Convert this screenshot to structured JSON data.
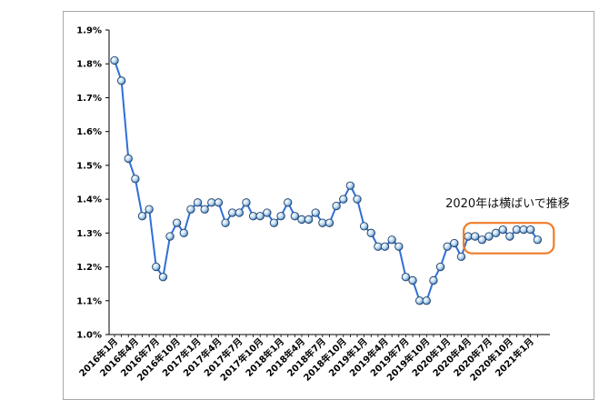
{
  "chart_data": {
    "type": "line",
    "title": "",
    "xlabel": "",
    "ylabel": "",
    "ylim": [
      1.0,
      1.9
    ],
    "y_ticks": [
      "1.0%",
      "1.1%",
      "1.2%",
      "1.3%",
      "1.4%",
      "1.5%",
      "1.6%",
      "1.7%",
      "1.8%",
      "1.9%"
    ],
    "x_tick_labels": [
      "2016年1月",
      "2016年4月",
      "2016年7月",
      "2016年10月",
      "2017年1月",
      "2017年4月",
      "2017年7月",
      "2017年10月",
      "2018年1月",
      "2018年4月",
      "2018年7月",
      "2018年10月",
      "2019年1月",
      "2019年4月",
      "2019年7月",
      "2019年10月",
      "2020年1月",
      "2020年4月",
      "2020年7月",
      "2020年10月",
      "2021年1月"
    ],
    "grid": false,
    "colors": {
      "line": "#2e6fd8",
      "marker": "#b8d8f0",
      "highlight": "#f07c28"
    },
    "series": [
      {
        "values": [
          1.81,
          1.75,
          1.52,
          1.46,
          1.35,
          1.37,
          1.2,
          1.17,
          1.29,
          1.33,
          1.3,
          1.37,
          1.39,
          1.37,
          1.39,
          1.39,
          1.33,
          1.36,
          1.36,
          1.39,
          1.35,
          1.35,
          1.36,
          1.33,
          1.35,
          1.39,
          1.35,
          1.34,
          1.34,
          1.36,
          1.33,
          1.33,
          1.38,
          1.4,
          1.44,
          1.4,
          1.32,
          1.3,
          1.26,
          1.26,
          1.28,
          1.26,
          1.17,
          1.16,
          1.1,
          1.1,
          1.16,
          1.2,
          1.26,
          1.27,
          1.23,
          1.29,
          1.29,
          1.28,
          1.29,
          1.3,
          1.31,
          1.29,
          1.31,
          1.31,
          1.31,
          1.28
        ]
      }
    ],
    "annotation": {
      "text": "2020年は横ばいで推移",
      "x_range": [
        2020.25,
        2021.17
      ],
      "y_range": [
        1.24,
        1.33
      ]
    }
  }
}
